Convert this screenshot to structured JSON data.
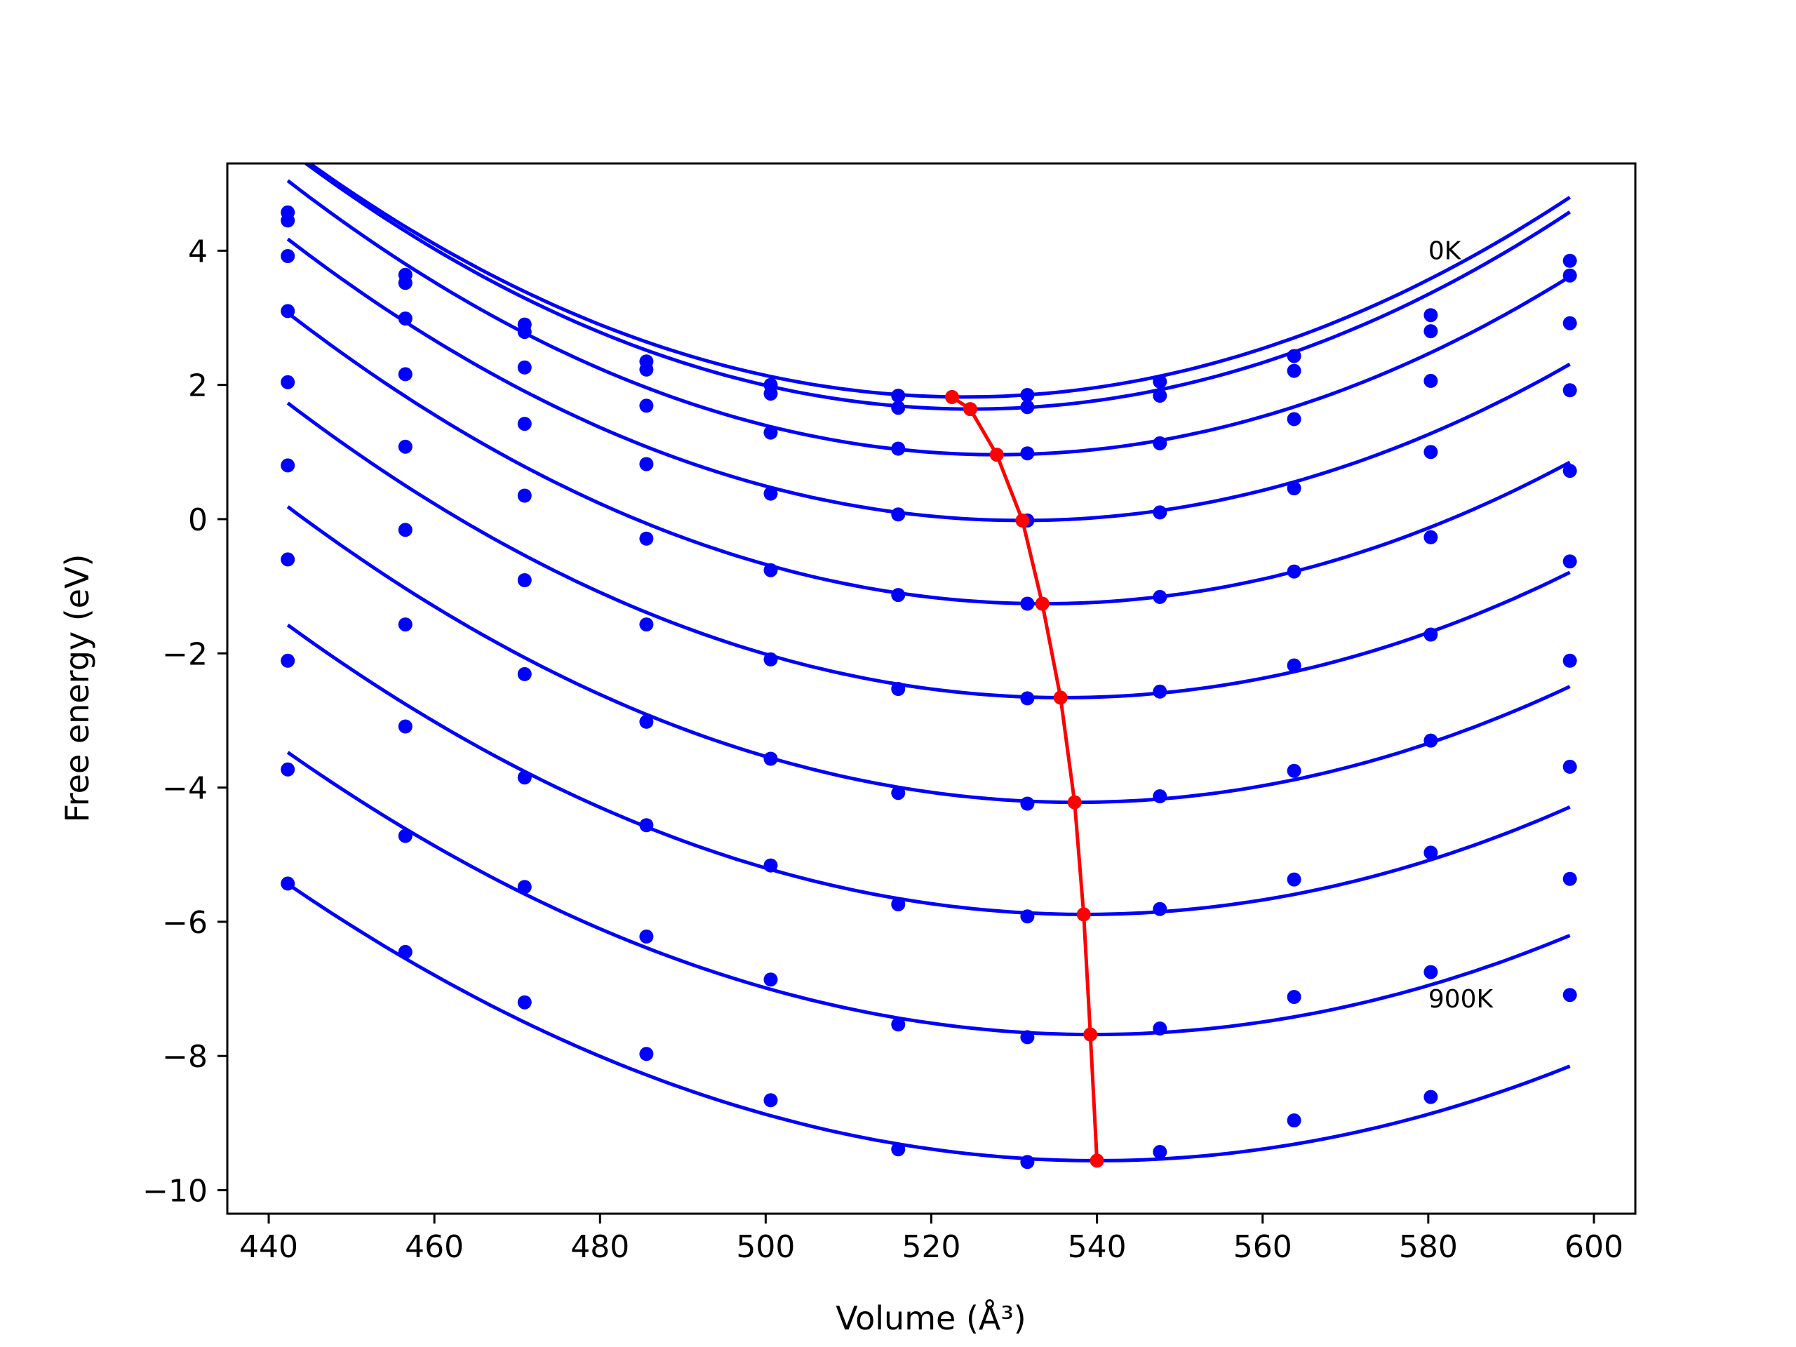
{
  "chart_data": {
    "type": "line",
    "title": "",
    "xlabel": "Volume (Å³)",
    "ylabel": "Free energy (eV)",
    "xlim": [
      435,
      605
    ],
    "ylim": [
      -10.35,
      5.3
    ],
    "xticks": [
      440,
      460,
      480,
      500,
      520,
      540,
      560,
      580,
      600
    ],
    "yticks": [
      -10,
      -8,
      -6,
      -4,
      -2,
      0,
      2,
      4
    ],
    "ytick_labels": [
      "−10",
      "−8",
      "−6",
      "−4",
      "−2",
      "0",
      "2",
      "4"
    ],
    "grid": false,
    "legend": "none",
    "colors": {
      "series": "#0000ff",
      "equilibrium": "#ff0000",
      "axes": "#000000"
    },
    "x": [
      442.3,
      456.5,
      470.9,
      485.6,
      500.6,
      516.0,
      531.6,
      547.6,
      563.8,
      580.3,
      597.1
    ],
    "series": [
      {
        "values": [
          4.57,
          3.64,
          2.9,
          2.35,
          2.0,
          1.84,
          1.85,
          2.05,
          2.43,
          3.04,
          3.85
        ]
      },
      {
        "values": [
          4.45,
          3.52,
          2.79,
          2.23,
          1.87,
          1.66,
          1.67,
          1.84,
          2.21,
          2.8,
          3.63
        ]
      },
      {
        "values": [
          3.92,
          2.99,
          2.26,
          1.69,
          1.29,
          1.05,
          0.98,
          1.13,
          1.49,
          2.06,
          2.92
        ]
      },
      {
        "values": [
          3.1,
          2.16,
          1.42,
          0.82,
          0.38,
          0.07,
          -0.02,
          0.1,
          0.46,
          1.0,
          1.92
        ]
      },
      {
        "values": [
          2.04,
          1.08,
          0.35,
          -0.29,
          -0.76,
          -1.13,
          -1.26,
          -1.16,
          -0.78,
          -0.27,
          0.72
        ]
      },
      {
        "values": [
          0.8,
          -0.16,
          -0.91,
          -1.57,
          -2.09,
          -2.53,
          -2.67,
          -2.57,
          -2.18,
          -1.72,
          -0.63
        ]
      },
      {
        "values": [
          -0.6,
          -1.57,
          -2.31,
          -3.02,
          -3.57,
          -4.08,
          -4.24,
          -4.13,
          -3.75,
          -3.3,
          -2.11
        ]
      },
      {
        "values": [
          -2.11,
          -3.09,
          -3.85,
          -4.56,
          -5.16,
          -5.74,
          -5.92,
          -5.81,
          -5.37,
          -4.97,
          -3.69
        ]
      },
      {
        "values": [
          -3.73,
          -4.72,
          -5.48,
          -6.22,
          -6.86,
          -7.53,
          -7.72,
          -7.59,
          -7.12,
          -6.75,
          -5.36
        ]
      },
      {
        "values": [
          -5.43,
          -6.45,
          -7.2,
          -7.97,
          -8.66,
          -9.39,
          -9.58,
          -9.43,
          -8.96,
          -8.61,
          -7.09
        ]
      }
    ],
    "fit_curves": [
      {
        "a": 0.000557,
        "v0": 524.0,
        "fmin": 1.82
      },
      {
        "a": 0.000565,
        "v0": 525.0,
        "fmin": 1.64
      },
      {
        "a": 0.000556,
        "v0": 528.0,
        "fmin": 0.96
      },
      {
        "a": 0.000533,
        "v0": 531.0,
        "fmin": -0.02
      },
      {
        "a": 0.000521,
        "v0": 533.5,
        "fmin": -1.26
      },
      {
        "a": 0.0005,
        "v0": 536.0,
        "fmin": -2.66
      },
      {
        "a": 0.000486,
        "v0": 537.5,
        "fmin": -4.22
      },
      {
        "a": 0.000466,
        "v0": 538.5,
        "fmin": -5.89
      },
      {
        "a": 0.000445,
        "v0": 539.5,
        "fmin": -7.68
      },
      {
        "a": 0.000432,
        "v0": 540.0,
        "fmin": -9.56
      }
    ],
    "equilibrium": {
      "x": [
        522.5,
        524.7,
        527.9,
        531.0,
        533.4,
        535.6,
        537.3,
        538.4,
        539.2,
        540.0
      ],
      "y": [
        1.82,
        1.64,
        0.96,
        -0.02,
        -1.26,
        -2.66,
        -4.22,
        -5.89,
        -7.68,
        -9.56
      ]
    },
    "annotations": [
      {
        "text": "0K",
        "x": 580.0,
        "y": 4.0
      },
      {
        "text": "900K",
        "x": 580.0,
        "y": -7.15
      }
    ]
  }
}
